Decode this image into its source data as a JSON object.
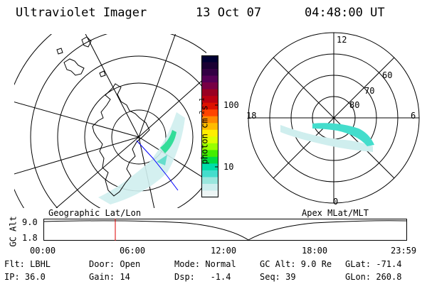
{
  "header": {
    "title": "Ultraviolet Imager",
    "date": "13 Oct 07",
    "time": "04:48:00 UT"
  },
  "left_panel": {
    "label": "Geographic Lat/Lon"
  },
  "right_panel": {
    "label": "Apex MLat/MLT",
    "hour_labels": [
      "12",
      "18",
      "6",
      "0"
    ],
    "lat_labels": [
      "60",
      "70",
      "80"
    ]
  },
  "colorbar": {
    "unit": "photon cm",
    "unit_sup1": "-2",
    "unit_mid": "s",
    "unit_sup2": "-1",
    "ticks": [
      "100",
      "10"
    ],
    "colors": [
      "#000033",
      "#1a0033",
      "#330044",
      "#550055",
      "#770044",
      "#990022",
      "#bb0011",
      "#dd1100",
      "#ff4400",
      "#ff8800",
      "#ffbb00",
      "#ffee00",
      "#ddff00",
      "#99ff00",
      "#44ee00",
      "#00dd44",
      "#00ddaa",
      "#44ddcc",
      "#99e6dd",
      "#cceeee",
      "#eef6f6"
    ]
  },
  "timeline": {
    "axis_label": "GC Alt",
    "y_ticks": [
      "9.0",
      "1.8"
    ],
    "x_ticks": [
      "00:00",
      "06:00",
      "12:00",
      "18:00",
      "23:59"
    ],
    "marker_color": "#dd0000"
  },
  "info": {
    "row1": [
      "Flt: LBHL",
      "Door: Open",
      "Mode: Normal",
      "GC Alt: 9.0 Re",
      "GLat: -71.4"
    ],
    "row2": [
      "IP: 36.0",
      "Gain: 14",
      "Dsp:   -1.4",
      "Seq: 39",
      "GLon: 260.8"
    ]
  }
}
